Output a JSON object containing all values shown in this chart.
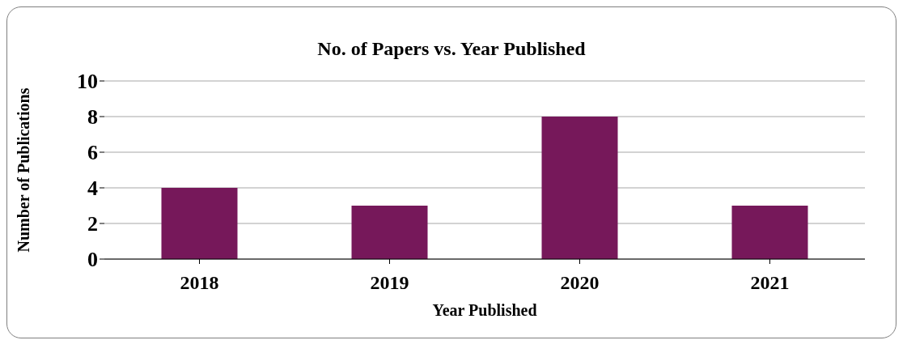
{
  "chart_data": {
    "type": "bar",
    "title": "No. of Papers vs. Year Published",
    "xlabel": "Year Published",
    "ylabel": "Number of  Publications",
    "categories": [
      "2018",
      "2019",
      "2020",
      "2021"
    ],
    "values": [
      4,
      3,
      8,
      3
    ],
    "color": "#76185a",
    "ylim": [
      0,
      10
    ],
    "yticks": [
      0,
      2,
      4,
      6,
      8,
      10
    ],
    "grid": "y"
  }
}
